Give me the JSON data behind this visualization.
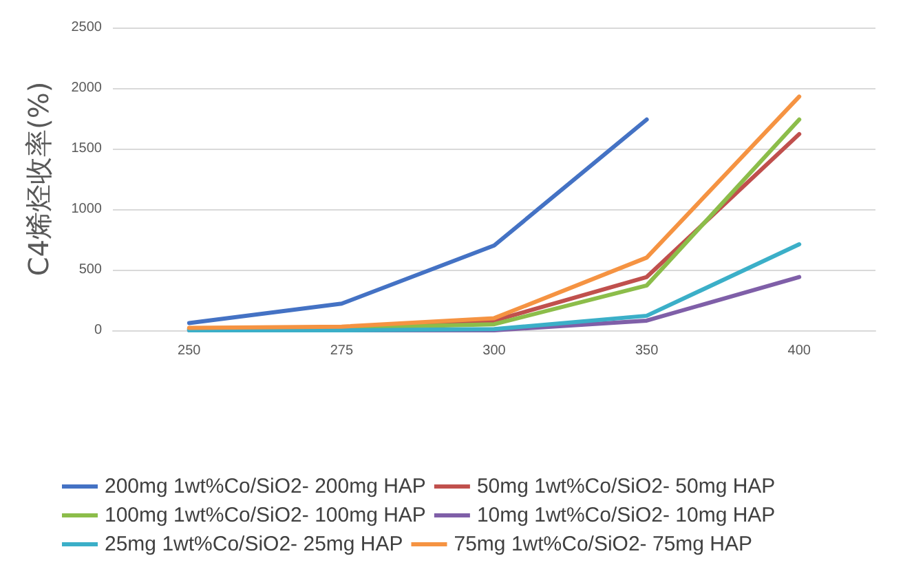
{
  "chart_data": {
    "type": "line",
    "ylabel": "C4烯烃收率(%)",
    "categories": [
      "250",
      "275",
      "300",
      "350",
      "400"
    ],
    "ylim": [
      0,
      2500
    ],
    "yticks": [
      0,
      500,
      1000,
      1500,
      2000,
      2500
    ],
    "grid": "y",
    "legend": "bottom",
    "marker": "none",
    "line_style": "solid",
    "series": [
      {
        "name": "200mg 1wt%Co/SiO2- 200mg HAP",
        "color": "#4472c4",
        "values": [
          60,
          220,
          700,
          1740,
          null
        ]
      },
      {
        "name": "50mg 1wt%Co/SiO2- 50mg HAP",
        "color": "#c0504d",
        "values": [
          10,
          20,
          80,
          440,
          1620
        ]
      },
      {
        "name": "100mg 1wt%Co/SiO2- 100mg HAP",
        "color": "#8cbd4a",
        "values": [
          10,
          20,
          50,
          370,
          1740
        ]
      },
      {
        "name": "10mg 1wt%Co/SiO2- 10mg HAP",
        "color": "#7f5fa8",
        "values": [
          0,
          0,
          0,
          80,
          440
        ]
      },
      {
        "name": "25mg 1wt%Co/SiO2- 25mg HAP",
        "color": "#3bafc8",
        "values": [
          0,
          0,
          10,
          120,
          710
        ]
      },
      {
        "name": "75mg 1wt%Co/SiO2- 75mg HAP",
        "color": "#f59342",
        "values": [
          20,
          30,
          100,
          600,
          1930
        ]
      }
    ]
  }
}
